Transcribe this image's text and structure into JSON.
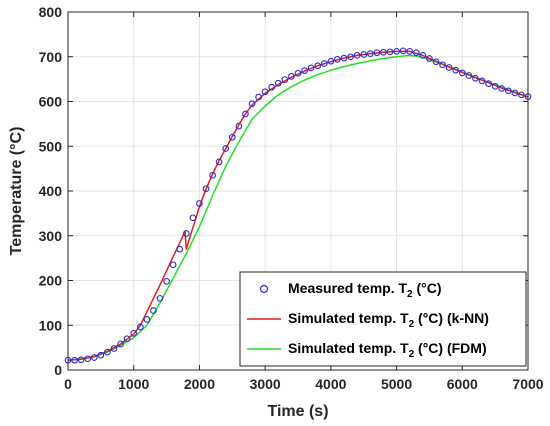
{
  "colors": {
    "measured": "#2b2bd9",
    "knn": "#e01f1f",
    "fdm": "#22e022",
    "grid": "#e3e3e3",
    "axis": "#262626"
  },
  "chart_data": {
    "type": "line",
    "title": "",
    "xlabel": "Time (s)",
    "ylabel": "Temperature (°C)",
    "xlim": [
      0,
      7000
    ],
    "ylim": [
      0,
      800
    ],
    "xticks": [
      0,
      1000,
      2000,
      3000,
      4000,
      5000,
      6000,
      7000
    ],
    "yticks": [
      0,
      100,
      200,
      300,
      400,
      500,
      600,
      700,
      800
    ],
    "grid": true,
    "legend_position": "bottom-right",
    "legend": [
      {
        "main": "Measured temp. T",
        "sub": "2",
        "rest": " (°C)"
      },
      {
        "main": "Simulated temp. T",
        "sub": "2",
        "rest": " (°C) (k-NN)"
      },
      {
        "main": "Simulated temp. T",
        "sub": "2",
        "rest": " (°C) (FDM)"
      }
    ],
    "series": [
      {
        "name": "Measured temp. T2 (°C)",
        "style": "markers",
        "x": [
          0,
          100,
          200,
          300,
          400,
          500,
          600,
          700,
          800,
          900,
          1000,
          1100,
          1200,
          1300,
          1400,
          1500,
          1600,
          1700,
          1800,
          1900,
          2000,
          2100,
          2200,
          2300,
          2400,
          2500,
          2600,
          2700,
          2800,
          2900,
          3000,
          3100,
          3200,
          3300,
          3400,
          3500,
          3600,
          3700,
          3800,
          3900,
          4000,
          4100,
          4200,
          4300,
          4400,
          4500,
          4600,
          4700,
          4800,
          4900,
          5000,
          5100,
          5200,
          5300,
          5400,
          5500,
          5600,
          5700,
          5800,
          5900,
          6000,
          6100,
          6200,
          6300,
          6400,
          6500,
          6600,
          6700,
          6800,
          6900,
          7000
        ],
        "y": [
          22,
          22,
          23,
          25,
          28,
          33,
          40,
          48,
          58,
          70,
          82,
          96,
          113,
          133,
          160,
          198,
          235,
          270,
          305,
          340,
          372,
          405,
          435,
          465,
          495,
          520,
          545,
          572,
          595,
          610,
          622,
          632,
          641,
          649,
          656,
          663,
          669,
          675,
          680,
          685,
          690,
          694,
          697,
          700,
          703,
          705,
          707,
          709,
          710,
          711,
          712,
          713,
          712,
          709,
          703,
          696,
          689,
          682,
          676,
          670,
          664,
          658,
          652,
          646,
          640,
          634,
          629,
          624,
          619,
          615,
          611
        ]
      },
      {
        "name": "Simulated temp. T2 (°C) (k-NN)",
        "style": "line",
        "x": [
          0,
          200,
          400,
          600,
          800,
          1000,
          1100,
          1200,
          1300,
          1400,
          1500,
          1600,
          1700,
          1780,
          1800,
          1850,
          1900,
          2000,
          2100,
          2200,
          2300,
          2400,
          2500,
          2600,
          2700,
          2800,
          3000,
          3200,
          3400,
          3600,
          3800,
          4000,
          4200,
          4400,
          4600,
          4800,
          5000,
          5200,
          5400,
          5600,
          5800,
          6000,
          6200,
          6400,
          6600,
          6800,
          7000
        ],
        "y": [
          22,
          24,
          30,
          42,
          58,
          80,
          100,
          130,
          160,
          190,
          222,
          253,
          284,
          310,
          270,
          295,
          318,
          365,
          404,
          438,
          468,
          495,
          522,
          548,
          572,
          592,
          618,
          638,
          654,
          668,
          680,
          689,
          697,
          703,
          707,
          710,
          712,
          712,
          703,
          690,
          677,
          665,
          653,
          642,
          630,
          620,
          610
        ]
      },
      {
        "name": "Simulated temp. T2 (°C) (FDM)",
        "style": "line",
        "x": [
          0,
          200,
          400,
          600,
          800,
          1000,
          1200,
          1400,
          1600,
          1800,
          2000,
          2200,
          2400,
          2600,
          2800,
          3000,
          3200,
          3400,
          3600,
          3800,
          4000,
          4200,
          4400,
          4600,
          4800,
          5000,
          5200,
          5400,
          5600,
          5800,
          6000,
          6200,
          6400,
          6600,
          6800,
          7000
        ],
        "y": [
          22,
          25,
          30,
          40,
          55,
          72,
          100,
          150,
          205,
          260,
          320,
          390,
          455,
          510,
          560,
          590,
          615,
          633,
          648,
          660,
          670,
          678,
          685,
          691,
          696,
          700,
          703,
          699,
          688,
          677,
          666,
          654,
          643,
          632,
          621,
          610
        ]
      }
    ]
  }
}
